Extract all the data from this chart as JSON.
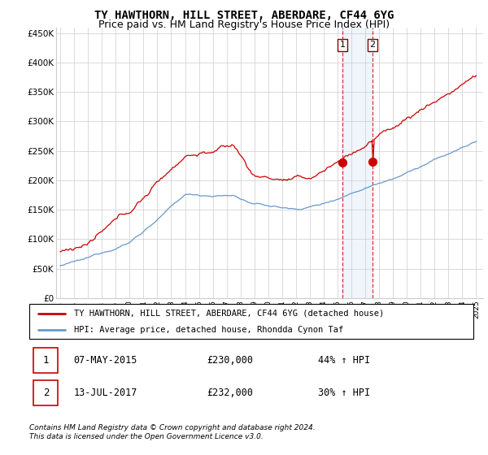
{
  "title": "TY HAWTHORN, HILL STREET, ABERDARE, CF44 6YG",
  "subtitle": "Price paid vs. HM Land Registry's House Price Index (HPI)",
  "red_label": "TY HAWTHORN, HILL STREET, ABERDARE, CF44 6YG (detached house)",
  "blue_label": "HPI: Average price, detached house, Rhondda Cynon Taf",
  "footnote1": "Contains HM Land Registry data © Crown copyright and database right 2024.",
  "footnote2": "This data is licensed under the Open Government Licence v3.0.",
  "transaction1_date": "07-MAY-2015",
  "transaction1_price": "£230,000",
  "transaction1_hpi": "44% ↑ HPI",
  "transaction2_date": "13-JUL-2017",
  "transaction2_price": "£232,000",
  "transaction2_hpi": "30% ↑ HPI",
  "transaction1_year": 2015.35,
  "transaction2_year": 2017.53,
  "transaction1_value": 230000,
  "transaction2_value": 232000,
  "ylim_min": 0,
  "ylim_max": 460000,
  "yticks": [
    0,
    50000,
    100000,
    150000,
    200000,
    250000,
    300000,
    350000,
    400000,
    450000
  ],
  "ytick_labels": [
    "£0",
    "£50K",
    "£100K",
    "£150K",
    "£200K",
    "£250K",
    "£300K",
    "£350K",
    "£400K",
    "£450K"
  ],
  "year_start": 1995,
  "year_end": 2025,
  "red_color": "#cc0000",
  "blue_color": "#6699cc",
  "vline_color": "#cc0000",
  "highlight_color": "#ddeeff",
  "background_color": "#ffffff",
  "grid_color": "#cccccc",
  "title_fontsize": 10,
  "subtitle_fontsize": 9
}
